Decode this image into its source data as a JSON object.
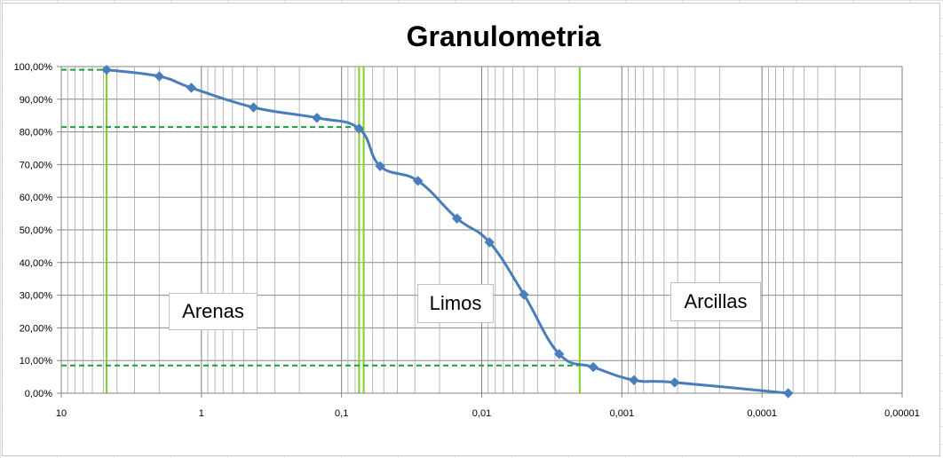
{
  "chart_data": {
    "type": "scatter",
    "title": "Granulometria",
    "x_scale": "log",
    "x_reversed": true,
    "xlim": [
      10,
      1e-05
    ],
    "ylim": [
      0,
      1
    ],
    "x_tick_labels": [
      "10",
      "1",
      "0,1",
      "0,01",
      "0,001",
      "0,0001",
      "0,00001"
    ],
    "y_tick_labels": [
      "0,00%",
      "10,00%",
      "20,00%",
      "30,00%",
      "40,00%",
      "50,00%",
      "60,00%",
      "70,00%",
      "80,00%",
      "90,00%",
      "100,00%"
    ],
    "grid": true,
    "legend": "none",
    "series": [
      {
        "color": "#4a7ebb",
        "marker": "diamond",
        "smooth": true,
        "points": [
          {
            "x": 4.75,
            "y": 0.99
          },
          {
            "x": 2.0,
            "y": 0.97
          },
          {
            "x": 1.18,
            "y": 0.935
          },
          {
            "x": 0.425,
            "y": 0.875
          },
          {
            "x": 0.15,
            "y": 0.843
          },
          {
            "x": 0.075,
            "y": 0.81
          },
          {
            "x": 0.053,
            "y": 0.695
          },
          {
            "x": 0.0285,
            "y": 0.65
          },
          {
            "x": 0.015,
            "y": 0.535
          },
          {
            "x": 0.0088,
            "y": 0.462
          },
          {
            "x": 0.005,
            "y": 0.302
          },
          {
            "x": 0.0028,
            "y": 0.12
          },
          {
            "x": 0.0016,
            "y": 0.08
          },
          {
            "x": 0.00082,
            "y": 0.04
          },
          {
            "x": 0.00042,
            "y": 0.033
          },
          {
            "x": 6.5e-05,
            "y": 0.0
          }
        ]
      }
    ],
    "reference_vertical_lines": [
      {
        "x": 4.75,
        "color": "#7ed321"
      },
      {
        "x": 0.075,
        "color": "#7ed321"
      },
      {
        "x": 0.0695,
        "color": "#7ed321"
      },
      {
        "x": 0.002,
        "color": "#7ed321"
      }
    ],
    "reference_dashed_lines": [
      {
        "x": 4.75,
        "y": 0.99,
        "color": "#1a9e3a"
      },
      {
        "x": 0.075,
        "y": 0.815,
        "color": "#1a9e3a"
      },
      {
        "x": 0.002,
        "y": 0.085,
        "color": "#1a9e3a"
      }
    ],
    "annotations": [
      {
        "text": "Arenas"
      },
      {
        "text": "Limos"
      },
      {
        "text": "Arcillas"
      }
    ]
  }
}
